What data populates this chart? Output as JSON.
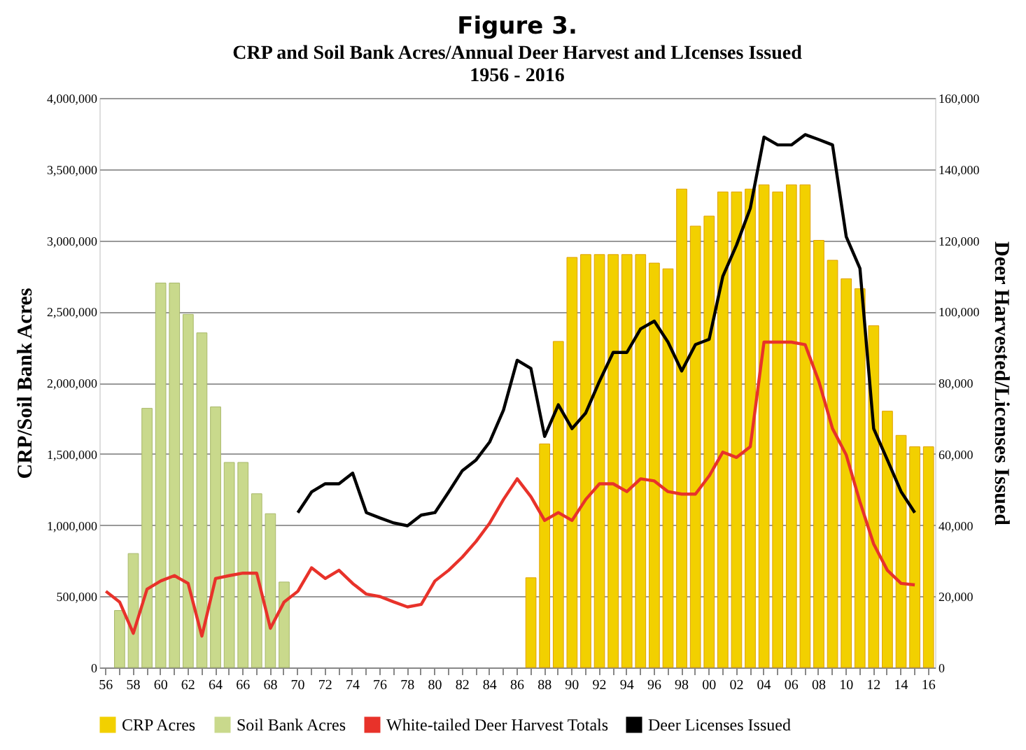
{
  "chart_data": {
    "type": "bar",
    "title": "Figure 3.",
    "subtitle": "CRP and Soil Bank Acres/Annual Deer Harvest and LIcenses Issued\n1956 - 2016",
    "ylabel": "CRP/Soil Bank Acres",
    "y2label": "Deer Harvested/Licenses Issued",
    "categories": [
      "56",
      null,
      "58",
      null,
      "60",
      null,
      "62",
      null,
      "64",
      null,
      "66",
      null,
      "68",
      null,
      "70",
      null,
      "72",
      null,
      "74",
      null,
      "76",
      null,
      "78",
      null,
      "80",
      null,
      "82",
      null,
      "84",
      null,
      "86",
      null,
      "88",
      null,
      "90",
      null,
      "92",
      null,
      "94",
      null,
      "96",
      null,
      "98",
      null,
      "00",
      null,
      "02",
      null,
      "04",
      null,
      "06",
      null,
      "08",
      null,
      "10",
      null,
      "12",
      null,
      "14",
      null,
      "16"
    ],
    "ylim": [
      0,
      4000000
    ],
    "yticks": [
      0,
      {
        "value": 500000,
        "label": "500,000"
      },
      {
        "value": 1000000,
        "label": "1,000,000"
      },
      {
        "value": 1500000,
        "label": "1,500,000"
      },
      {
        "value": 2000000,
        "label": "2,000,000"
      },
      {
        "value": 2500000,
        "label": "2,500,000"
      },
      {
        "value": 3000000,
        "label": "3,000,000"
      },
      {
        "value": 3500000,
        "label": "3,500,000"
      },
      {
        "value": 4000000,
        "label": "4,000,000"
      }
    ],
    "y2lim": [
      0,
      160000
    ],
    "y2ticks": [
      0,
      {
        "value": 20000,
        "label": "20,000"
      },
      {
        "value": 40000,
        "label": "40,000"
      },
      {
        "value": 60000,
        "label": "60,000"
      },
      {
        "value": 80000,
        "label": "80,000"
      },
      {
        "value": 100000,
        "label": "100,000"
      },
      {
        "value": 120000,
        "label": "120,000"
      },
      {
        "value": 140000,
        "label": "140,000"
      },
      {
        "value": 160000,
        "label": "160,000"
      }
    ],
    "grid": "y",
    "legend": "bottom",
    "line_style": "solid",
    "series": [
      {
        "name": "CRP Acres",
        "color": "#f2d000",
        "values": [
          null,
          null,
          null,
          null,
          null,
          null,
          null,
          null,
          null,
          null,
          null,
          null,
          null,
          null,
          null,
          null,
          null,
          null,
          null,
          null,
          null,
          null,
          null,
          null,
          null,
          null,
          null,
          null,
          null,
          null,
          null,
          630000.0,
          1570000.0,
          2290000.0,
          2880000.0,
          2900000.0,
          2900000.0,
          2900000.0,
          2900000.0,
          2900000.0,
          2840000.0,
          2800000.0,
          3360000.0,
          3100000.0,
          3170000.0,
          3340000.0,
          3340000.0,
          3360000.0,
          3390000.0,
          3340000.0,
          3390000.0,
          3390000.0,
          3000000.0,
          2860000.0,
          2730000.0,
          2660000.0,
          2400000.0,
          1800000.0,
          1630000.0,
          1550000.0,
          1550000.0
        ]
      },
      {
        "name": "Soil Bank Acres",
        "color": "#c9d98c",
        "values": [
          null,
          400000.0,
          800000.0,
          1820000.0,
          2700000.0,
          2700000.0,
          2480000.0,
          2350000.0,
          1830000.0,
          1440000.0,
          1440000.0,
          1220000.0,
          1080000.0,
          600000.0,
          null,
          null,
          null,
          null,
          null,
          null,
          null,
          null,
          null,
          null,
          null,
          null,
          null,
          null,
          null,
          null,
          null,
          null,
          null,
          null,
          null,
          null,
          null,
          null,
          null,
          null,
          null,
          null,
          null,
          null,
          null,
          null,
          null,
          null,
          null,
          null,
          null,
          null,
          null,
          null,
          null,
          null,
          null,
          null,
          null,
          null,
          null
        ]
      },
      {
        "name": "White-tailed Deer Harvest Totals",
        "type": "line",
        "axis": "y2",
        "color": "#e8322a",
        "values": [
          21400,
          18400,
          9600,
          22000,
          24300,
          25800,
          23600,
          8800,
          25000,
          25800,
          26500,
          26500,
          11000,
          18400,
          21400,
          28000,
          25000,
          27300,
          23600,
          20600,
          19900,
          18400,
          17000,
          17700,
          24300,
          27300,
          31000,
          35400,
          40600,
          47200,
          53000,
          48000,
          41300,
          43500,
          41300,
          47200,
          51600,
          51600,
          49400,
          53000,
          52400,
          49400,
          48700,
          48700,
          53800,
          60500,
          59000,
          62000,
          91400,
          91400,
          91400,
          90700,
          80400,
          67100,
          59700,
          46500,
          34700,
          27300,
          23600,
          23200,
          null
        ]
      },
      {
        "name": "Deer Licenses Issued",
        "type": "line",
        "axis": "y2",
        "color": "#000000",
        "values": [
          null,
          null,
          null,
          null,
          null,
          null,
          null,
          null,
          null,
          null,
          null,
          null,
          null,
          null,
          43500,
          49300,
          51600,
          51600,
          54600,
          43500,
          42000,
          40600,
          39800,
          42800,
          43500,
          49300,
          55300,
          58300,
          63400,
          72300,
          86300,
          84000,
          64900,
          73800,
          67100,
          71500,
          80400,
          88500,
          88500,
          95100,
          97300,
          91400,
          83300,
          90700,
          92200,
          109900,
          118700,
          129000,
          149000,
          146800,
          146800,
          149700,
          148300,
          146800,
          121000,
          112100,
          67100,
          58300,
          49400,
          43500,
          null
        ]
      }
    ]
  }
}
